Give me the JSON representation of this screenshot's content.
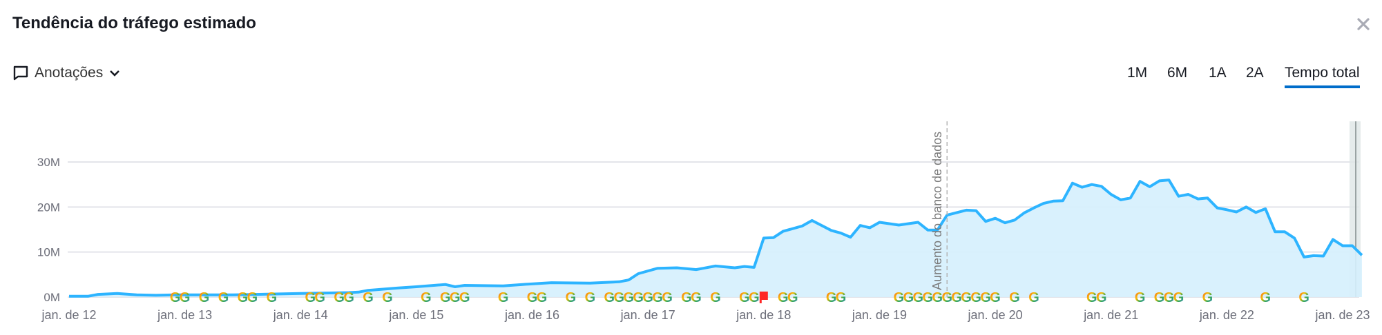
{
  "header": {
    "title": "Tendência do tráfego estimado",
    "close_icon": "close-icon"
  },
  "toolbar": {
    "annotations_label": "Anotações",
    "annotations_icon": "comment-icon",
    "tabs": [
      {
        "label": "1M",
        "active": false
      },
      {
        "label": "6M",
        "active": false
      },
      {
        "label": "1A",
        "active": false
      },
      {
        "label": "2A",
        "active": false
      },
      {
        "label": "Tempo total",
        "active": true
      }
    ],
    "active_color": "#006dca"
  },
  "chart_data": {
    "type": "area",
    "title": "",
    "xlabel": "",
    "ylabel": "",
    "ylim": [
      0,
      30000000
    ],
    "grid": true,
    "y_ticks": [
      "0M",
      "10M",
      "20M",
      "30M"
    ],
    "x_ticks": [
      "jan. de 12",
      "jan. de 13",
      "jan. de 14",
      "jan. de 15",
      "jan. de 16",
      "jan. de 17",
      "jan. de 18",
      "jan. de 19",
      "jan. de 20",
      "jan. de 21",
      "jan. de 22",
      "jan. de 23"
    ],
    "line_color": "#2db4ff",
    "fill_color": "#d5effd",
    "series": [
      {
        "x": [
          "2012-01",
          "2012-03",
          "2012-04",
          "2012-06",
          "2012-08",
          "2012-10",
          "2012-12",
          "2013-06",
          "2014-01",
          "2014-06",
          "2014-07",
          "2014-08",
          "2014-11",
          "2015-01",
          "2015-04",
          "2015-05",
          "2015-06",
          "2015-10",
          "2015-12",
          "2016-03",
          "2016-07",
          "2016-10",
          "2016-11",
          "2016-12",
          "2017-02",
          "2017-04",
          "2017-06",
          "2017-08",
          "2017-10",
          "2017-11",
          "2017-12",
          "2018-01",
          "2018-02",
          "2018-03",
          "2018-05",
          "2018-06",
          "2018-08",
          "2018-09",
          "2018-10",
          "2018-11",
          "2018-12",
          "2019-01",
          "2019-03",
          "2019-05",
          "2019-06",
          "2019-07",
          "2019-08",
          "2019-10",
          "2019-11",
          "2019-12",
          "2020-01",
          "2020-02",
          "2020-03",
          "2020-04",
          "2020-05",
          "2020-06",
          "2020-07",
          "2020-08",
          "2020-09",
          "2020-10",
          "2020-11",
          "2020-12",
          "2021-01",
          "2021-02",
          "2021-03",
          "2021-04",
          "2021-05",
          "2021-06",
          "2021-07",
          "2021-08",
          "2021-09",
          "2021-10",
          "2021-11",
          "2021-12",
          "2022-01",
          "2022-02",
          "2022-03",
          "2022-04",
          "2022-05",
          "2022-06",
          "2022-07",
          "2022-08",
          "2022-09",
          "2022-10",
          "2022-11",
          "2022-12",
          "2023-01",
          "2023-02",
          "2023-03"
        ],
        "values": [
          0.2,
          0.2,
          0.6,
          0.8,
          0.5,
          0.4,
          0.5,
          0.5,
          0.8,
          1.0,
          1.1,
          1.5,
          2.0,
          2.3,
          2.8,
          2.3,
          2.6,
          2.5,
          2.8,
          3.2,
          3.1,
          3.4,
          3.8,
          5.2,
          6.4,
          6.5,
          6.1,
          6.9,
          6.5,
          6.8,
          6.6,
          13.1,
          13.2,
          14.6,
          15.8,
          17.0,
          14.8,
          14.2,
          13.3,
          15.9,
          15.4,
          16.6,
          16.0,
          16.6,
          14.9,
          14.9,
          18.2,
          19.3,
          19.2,
          16.8,
          17.5,
          16.5,
          17.1,
          18.7,
          19.8,
          20.8,
          21.3,
          21.4,
          25.3,
          24.4,
          25.0,
          24.6,
          22.8,
          21.6,
          22.0,
          25.7,
          24.5,
          25.8,
          26.0,
          22.4,
          22.8,
          21.8,
          22.0,
          19.8,
          19.4,
          18.9,
          20.0,
          18.8,
          19.6,
          14.5,
          14.5,
          13.1,
          8.9,
          9.2,
          9.1,
          12.8,
          11.4,
          11.4,
          9.3
        ],
        "unit": "M"
      }
    ],
    "annotations": {
      "database_increase": {
        "label": "Aumento do banco de dados",
        "date": "2019-08"
      },
      "google_updates": [
        "2012-12",
        "2013-01",
        "2013-03",
        "2013-05",
        "2013-07",
        "2013-08",
        "2013-10",
        "2014-02",
        "2014-03",
        "2014-05",
        "2014-06",
        "2014-08",
        "2014-10",
        "2015-02",
        "2015-04",
        "2015-05",
        "2015-06",
        "2015-10",
        "2016-01",
        "2016-02",
        "2016-05",
        "2016-07",
        "2016-09",
        "2016-10",
        "2016-11",
        "2016-12",
        "2017-01",
        "2017-02",
        "2017-03",
        "2017-05",
        "2017-06",
        "2017-08",
        "2017-11",
        "2017-12",
        "2018-03",
        "2018-04",
        "2018-08",
        "2018-09",
        "2019-03",
        "2019-04",
        "2019-05",
        "2019-06",
        "2019-07",
        "2019-08",
        "2019-09",
        "2019-10",
        "2019-11",
        "2019-12",
        "2020-01",
        "2020-03",
        "2020-05",
        "2020-11",
        "2020-12",
        "2021-04",
        "2021-06",
        "2021-07",
        "2021-08",
        "2021-11",
        "2022-05",
        "2022-09"
      ],
      "flag_dates": [
        "2018-01"
      ],
      "flag_color": "#ff2626"
    }
  }
}
